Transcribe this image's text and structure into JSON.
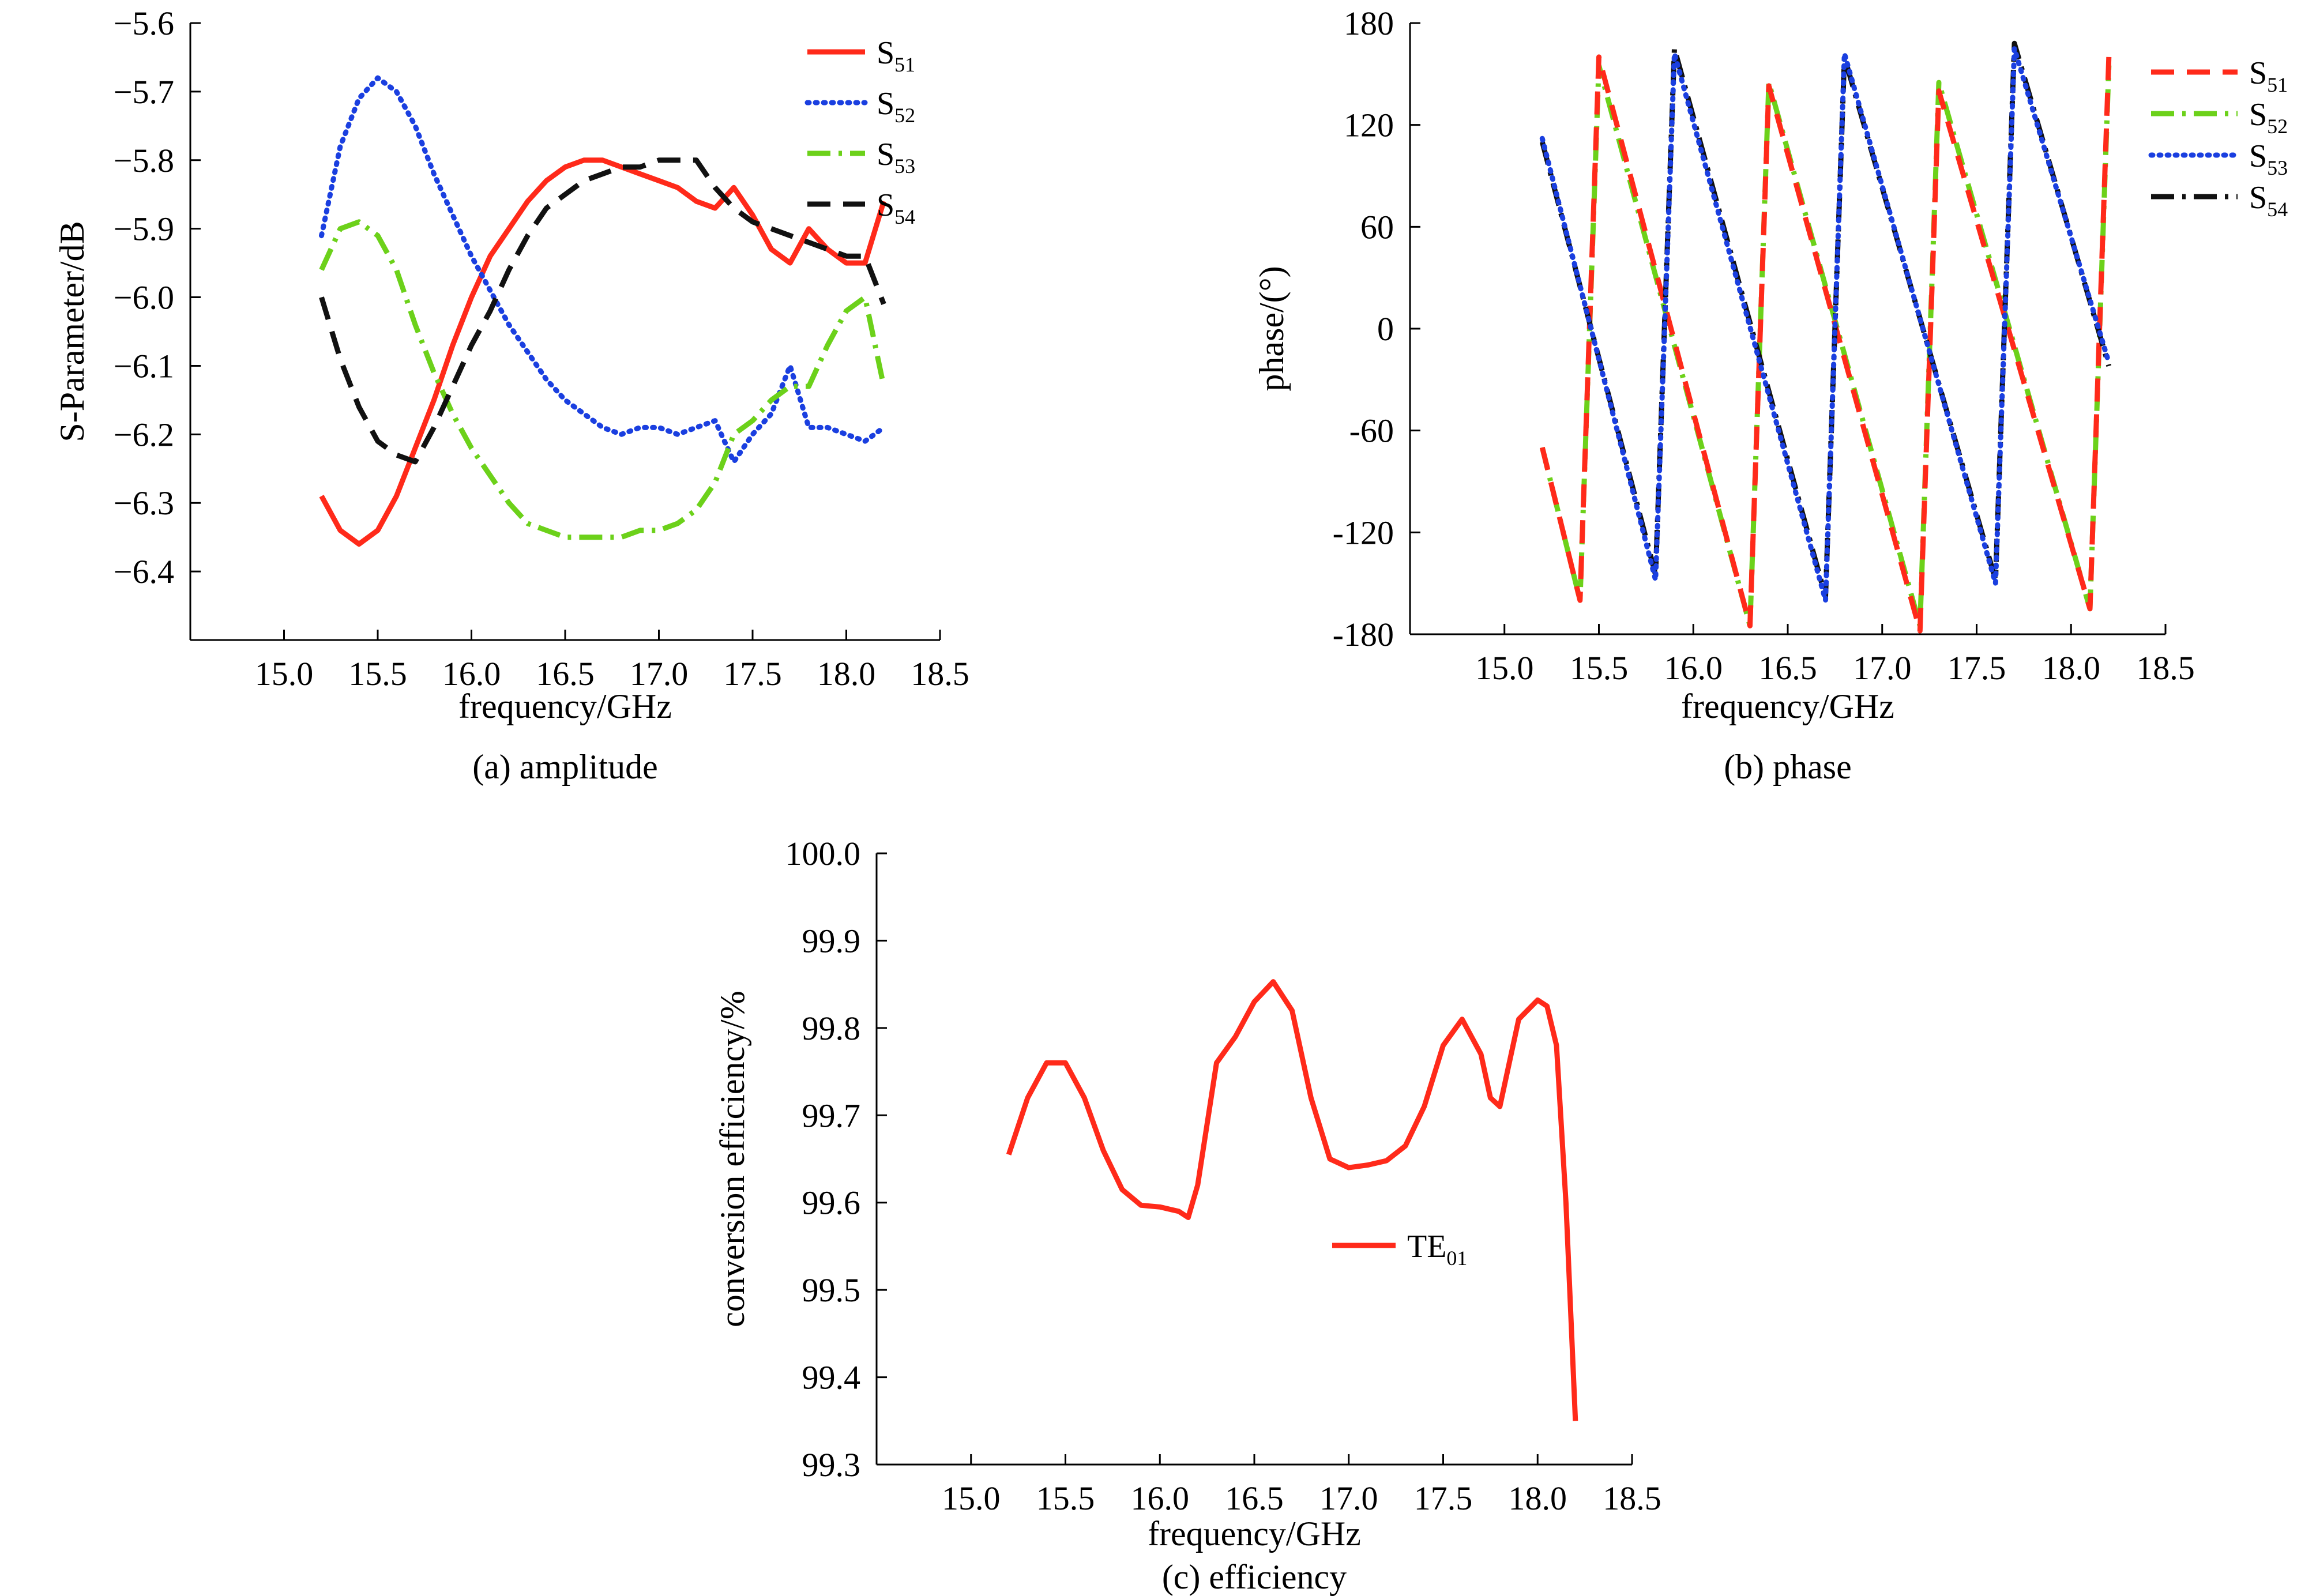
{
  "chart_data": [
    {
      "type": "line",
      "caption": "(a) amplitude",
      "xlabel": "frequency/GHz",
      "ylabel": "S-Parameter/dB",
      "xlim": [
        14.5,
        18.5
      ],
      "ylim": [
        -6.5,
        -5.6
      ],
      "xticks": [
        15.0,
        15.5,
        16.0,
        16.5,
        17.0,
        17.5,
        18.0,
        18.5
      ],
      "yticks": [
        -6.4,
        -6.3,
        -6.2,
        -6.1,
        -6.0,
        -5.9,
        -5.8,
        -5.7,
        -5.6
      ],
      "xtick_labels": [
        "15.0",
        "15.5",
        "16.0",
        "16.5",
        "17.0",
        "17.5",
        "18.0",
        "18.5"
      ],
      "ytick_labels": [
        "−6.4",
        "−6.3",
        "−6.2",
        "−6.1",
        "−6.0",
        "−5.9",
        "−5.8",
        "−5.7",
        "−5.6"
      ],
      "legend_position": "top-right",
      "series": [
        {
          "name": "S51",
          "base": "S",
          "sub": "51",
          "color": "#ff2a1a",
          "style": "solid",
          "x": [
            15.2,
            15.3,
            15.4,
            15.5,
            15.6,
            15.7,
            15.8,
            15.9,
            16.0,
            16.1,
            16.2,
            16.3,
            16.4,
            16.5,
            16.6,
            16.7,
            16.8,
            16.9,
            17.0,
            17.1,
            17.2,
            17.3,
            17.4,
            17.5,
            17.6,
            17.7,
            17.8,
            17.9,
            18.0,
            18.1,
            18.2
          ],
          "y": [
            -6.29,
            -6.34,
            -6.36,
            -6.34,
            -6.29,
            -6.22,
            -6.15,
            -6.07,
            -6.0,
            -5.94,
            -5.9,
            -5.86,
            -5.83,
            -5.81,
            -5.8,
            -5.8,
            -5.81,
            -5.82,
            -5.83,
            -5.84,
            -5.86,
            -5.87,
            -5.84,
            -5.88,
            -5.93,
            -5.95,
            -5.9,
            -5.93,
            -5.95,
            -5.95,
            -5.86
          ]
        },
        {
          "name": "S52",
          "base": "S",
          "sub": "52",
          "color": "#1a3fe0",
          "style": "dotted",
          "x": [
            15.2,
            15.3,
            15.4,
            15.5,
            15.6,
            15.7,
            15.8,
            15.9,
            16.0,
            16.1,
            16.2,
            16.3,
            16.4,
            16.5,
            16.6,
            16.7,
            16.8,
            16.9,
            17.0,
            17.1,
            17.2,
            17.3,
            17.4,
            17.5,
            17.6,
            17.7,
            17.8,
            17.9,
            18.0,
            18.1,
            18.2
          ],
          "y": [
            -5.91,
            -5.78,
            -5.71,
            -5.68,
            -5.7,
            -5.75,
            -5.82,
            -5.88,
            -5.94,
            -5.99,
            -6.04,
            -6.08,
            -6.12,
            -6.15,
            -6.17,
            -6.19,
            -6.2,
            -6.19,
            -6.19,
            -6.2,
            -6.19,
            -6.18,
            -6.24,
            -6.2,
            -6.17,
            -6.1,
            -6.19,
            -6.19,
            -6.2,
            -6.21,
            -6.19
          ]
        },
        {
          "name": "S53",
          "base": "S",
          "sub": "53",
          "color": "#6cd11a",
          "style": "dashdot",
          "x": [
            15.2,
            15.3,
            15.4,
            15.5,
            15.6,
            15.7,
            15.8,
            15.9,
            16.0,
            16.1,
            16.2,
            16.3,
            16.4,
            16.5,
            16.6,
            16.7,
            16.8,
            16.9,
            17.0,
            17.1,
            17.2,
            17.3,
            17.4,
            17.5,
            17.6,
            17.7,
            17.8,
            17.9,
            18.0,
            18.1,
            18.2
          ],
          "y": [
            -5.96,
            -5.9,
            -5.89,
            -5.91,
            -5.96,
            -6.04,
            -6.11,
            -6.17,
            -6.22,
            -6.26,
            -6.3,
            -6.33,
            -6.34,
            -6.35,
            -6.35,
            -6.35,
            -6.35,
            -6.34,
            -6.34,
            -6.33,
            -6.31,
            -6.27,
            -6.2,
            -6.18,
            -6.15,
            -6.13,
            -6.13,
            -6.07,
            -6.02,
            -6.0,
            -6.13
          ]
        },
        {
          "name": "S54",
          "base": "S",
          "sub": "54",
          "color": "#111111",
          "style": "dashed",
          "x": [
            15.2,
            15.3,
            15.4,
            15.5,
            15.6,
            15.7,
            15.8,
            15.9,
            16.0,
            16.1,
            16.2,
            16.3,
            16.4,
            16.5,
            16.6,
            16.7,
            16.8,
            16.9,
            17.0,
            17.1,
            17.2,
            17.3,
            17.4,
            17.5,
            17.6,
            17.7,
            17.8,
            17.9,
            18.0,
            18.1,
            18.2
          ],
          "y": [
            -6.0,
            -6.09,
            -6.16,
            -6.21,
            -6.23,
            -6.24,
            -6.19,
            -6.13,
            -6.07,
            -6.02,
            -5.96,
            -5.91,
            -5.87,
            -5.85,
            -5.83,
            -5.82,
            -5.81,
            -5.81,
            -5.8,
            -5.8,
            -5.8,
            -5.84,
            -5.87,
            -5.89,
            -5.9,
            -5.91,
            -5.92,
            -5.93,
            -5.94,
            -5.94,
            -6.01
          ]
        }
      ]
    },
    {
      "type": "line",
      "caption": "(b) phase",
      "xlabel": "frequency/GHz",
      "ylabel": "phase/(°)",
      "xlim": [
        14.5,
        18.5
      ],
      "ylim": [
        -180,
        180
      ],
      "xticks": [
        15.0,
        15.5,
        16.0,
        16.5,
        17.0,
        17.5,
        18.0,
        18.5
      ],
      "yticks": [
        -180,
        -120,
        -60,
        0,
        60,
        120,
        180
      ],
      "xtick_labels": [
        "15.0",
        "15.5",
        "16.0",
        "16.5",
        "17.0",
        "17.5",
        "18.0",
        "18.5"
      ],
      "ytick_labels": [
        "-180",
        "-120",
        "-60",
        "0",
        "60",
        "120",
        "180"
      ],
      "legend_position": "top-right",
      "series": [
        {
          "name": "S52",
          "base": "S",
          "sub": "52",
          "color": "#6cd11a",
          "style": "dashdot",
          "x": [
            15.2,
            15.4,
            15.5,
            16.3,
            16.4,
            17.2,
            17.3,
            18.1,
            18.2
          ],
          "y": [
            -70,
            -160,
            155,
            -175,
            145,
            -175,
            145,
            -165,
            155
          ]
        },
        {
          "name": "S51",
          "base": "S",
          "sub": "51",
          "color": "#ff2a1a",
          "style": "dashed",
          "x": [
            15.2,
            15.4,
            15.5,
            16.3,
            16.4,
            17.2,
            17.3,
            18.1,
            18.2
          ],
          "y": [
            -70,
            -160,
            160,
            -175,
            143,
            -178,
            140,
            -165,
            160
          ]
        },
        {
          "name": "S54",
          "base": "S",
          "sub": "54",
          "color": "#111111",
          "style": "dashdot",
          "x": [
            15.2,
            15.8,
            15.9,
            16.7,
            16.8,
            17.6,
            17.7,
            18.2
          ],
          "y": [
            110,
            -145,
            165,
            -158,
            160,
            -148,
            168,
            -22
          ]
        },
        {
          "name": "S53",
          "base": "S",
          "sub": "53",
          "color": "#1a3fe0",
          "style": "dotted",
          "x": [
            15.2,
            15.8,
            15.9,
            16.7,
            16.8,
            17.6,
            17.7,
            18.2
          ],
          "y": [
            112,
            -148,
            162,
            -160,
            162,
            -150,
            165,
            -20
          ]
        }
      ],
      "legend_order": [
        "S51",
        "S52",
        "S53",
        "S54"
      ]
    },
    {
      "type": "line",
      "caption": "(c) efficiency",
      "xlabel": "frequency/GHz",
      "ylabel": "conversion efficiency/%",
      "xlim": [
        14.5,
        18.5
      ],
      "ylim": [
        99.3,
        100.0
      ],
      "xticks": [
        15.0,
        15.5,
        16.0,
        16.5,
        17.0,
        17.5,
        18.0,
        18.5
      ],
      "yticks": [
        99.3,
        99.4,
        99.5,
        99.6,
        99.7,
        99.8,
        99.9,
        100.0
      ],
      "xtick_labels": [
        "15.0",
        "15.5",
        "16.0",
        "16.5",
        "17.0",
        "17.5",
        "18.0",
        "18.5"
      ],
      "ytick_labels": [
        "99.3",
        "99.4",
        "99.5",
        "99.6",
        "99.7",
        "99.8",
        "99.9",
        "100.0"
      ],
      "legend_position": "center-right",
      "series": [
        {
          "name": "TE01",
          "base": "TE",
          "sub": "01",
          "color": "#ff2a1a",
          "style": "solid",
          "x": [
            15.2,
            15.3,
            15.4,
            15.5,
            15.6,
            15.7,
            15.8,
            15.9,
            16.0,
            16.1,
            16.15,
            16.2,
            16.3,
            16.4,
            16.5,
            16.6,
            16.7,
            16.8,
            16.9,
            17.0,
            17.1,
            17.2,
            17.3,
            17.4,
            17.5,
            17.6,
            17.7,
            17.75,
            17.8,
            17.85,
            17.9,
            18.0,
            18.05,
            18.1,
            18.15,
            18.2
          ],
          "y": [
            99.655,
            99.72,
            99.76,
            99.76,
            99.72,
            99.66,
            99.615,
            99.597,
            99.595,
            99.59,
            99.583,
            99.62,
            99.76,
            99.79,
            99.83,
            99.853,
            99.82,
            99.72,
            99.65,
            99.64,
            99.643,
            99.648,
            99.665,
            99.71,
            99.78,
            99.81,
            99.77,
            99.72,
            99.71,
            99.76,
            99.81,
            99.832,
            99.825,
            99.78,
            99.6,
            99.35
          ]
        }
      ]
    }
  ]
}
